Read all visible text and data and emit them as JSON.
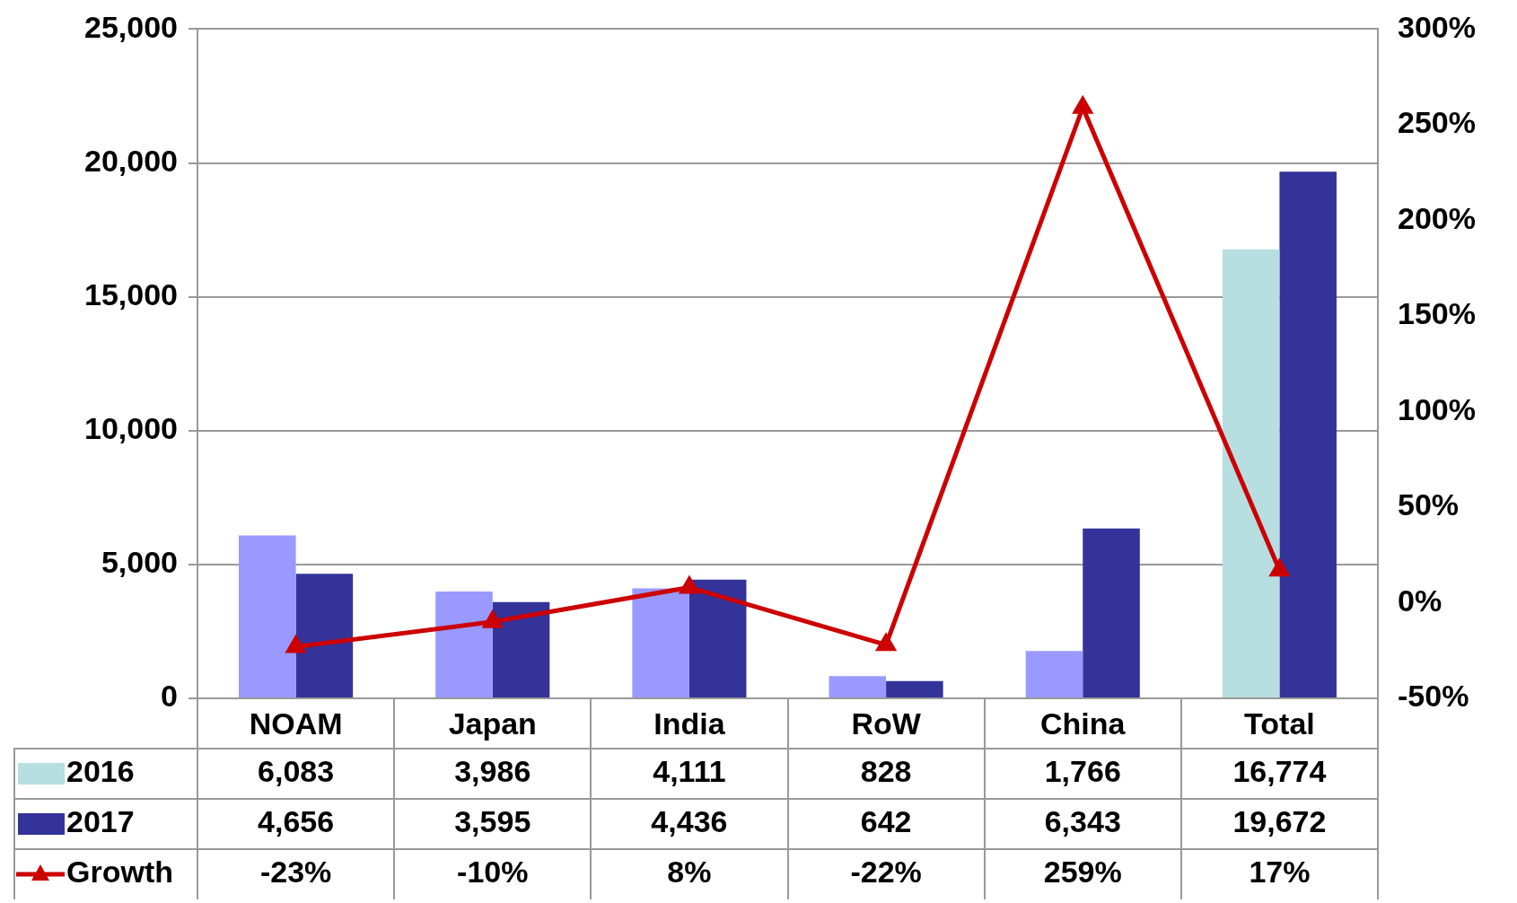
{
  "chart_data": {
    "type": "bar",
    "categories": [
      "NOAM",
      "Japan",
      "India",
      "RoW",
      "China",
      "Total"
    ],
    "series": [
      {
        "name": "2016",
        "color": "#b7dee0",
        "colors": [
          "#9999ff",
          "#9999ff",
          "#9999ff",
          "#9999ff",
          "#9999ff",
          "#b7dee0"
        ],
        "values": [
          6083,
          3986,
          4111,
          828,
          1766,
          16774
        ],
        "value_labels": [
          "6,083",
          "3,986",
          "4,111",
          "828",
          "1,766",
          "16,774"
        ]
      },
      {
        "name": "2017",
        "color": "#333399",
        "values": [
          4656,
          3595,
          4436,
          642,
          6343,
          19672
        ],
        "value_labels": [
          "4,656",
          "3,595",
          "4,436",
          "642",
          "6,343",
          "19,672"
        ]
      },
      {
        "name": "Growth",
        "type": "line",
        "axis": "y2",
        "marker": "triangle",
        "color": "#cc0000",
        "values": [
          -23,
          -10,
          8,
          -22,
          259,
          17
        ],
        "value_labels": [
          "-23%",
          "-10%",
          "8%",
          "-22%",
          "259%",
          "17%"
        ]
      }
    ],
    "ylim": [
      0,
      25000
    ],
    "yticks": [
      0,
      {
        "value": 5000,
        "label": "5,000"
      },
      {
        "value": 10000,
        "label": "10,000"
      },
      {
        "value": 15000,
        "label": "15,000"
      },
      {
        "value": 20000,
        "label": "20,000"
      },
      {
        "value": 25000,
        "label": "25,000"
      }
    ],
    "y2lim": [
      -50,
      300
    ],
    "y2ticks": [
      {
        "value": -50,
        "label": "-50%"
      },
      {
        "value": 0,
        "label": "0%"
      },
      {
        "value": 50,
        "label": "50%"
      },
      {
        "value": 100,
        "label": "100%"
      },
      {
        "value": 150,
        "label": "150%"
      },
      {
        "value": 200,
        "label": "200%"
      },
      {
        "value": 250,
        "label": "250%"
      },
      {
        "value": 300,
        "label": "300%"
      }
    ],
    "grid": "y",
    "legend": "bottom left"
  }
}
